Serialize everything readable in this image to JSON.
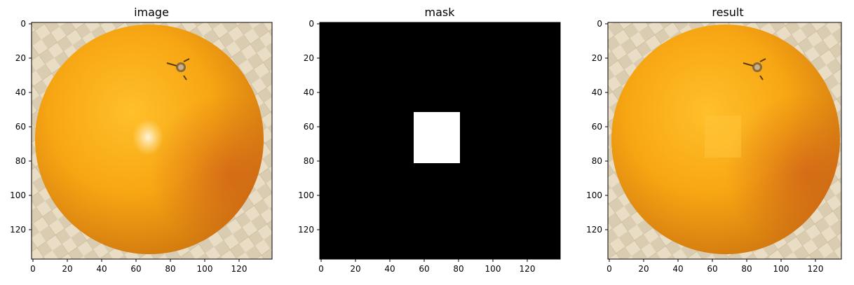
{
  "panels": [
    {
      "title": "image",
      "x_ticks": [
        "0",
        "20",
        "40",
        "60",
        "80",
        "100",
        "120"
      ],
      "y_ticks": [
        "0",
        "20",
        "40",
        "60",
        "80",
        "100",
        "120"
      ],
      "content": "orange photo on woven mat"
    },
    {
      "title": "mask",
      "x_ticks": [
        "0",
        "20",
        "40",
        "60",
        "80",
        "100",
        "120"
      ],
      "y_ticks": [
        "0",
        "20",
        "40",
        "60",
        "80",
        "100",
        "120"
      ],
      "content": "black background with white rectangle",
      "mask_rect_data": {
        "x0": 55,
        "x1": 82,
        "y0": 53,
        "y1": 82
      }
    },
    {
      "title": "result",
      "x_ticks": [
        "0",
        "20",
        "40",
        "60",
        "80",
        "100",
        "120"
      ],
      "y_ticks": [
        "0",
        "20",
        "40",
        "60",
        "80",
        "100",
        "120"
      ],
      "content": "orange photo with highlight inpainted"
    }
  ],
  "colors": {
    "orange_light": "#ffc02a",
    "orange_mid": "#f7a613",
    "orange_dark": "#d27a10",
    "mat_light": "#e9ddc6",
    "mat_dark": "#cbbb9f",
    "mask_bg": "#000000",
    "mask_fg": "#ffffff"
  }
}
